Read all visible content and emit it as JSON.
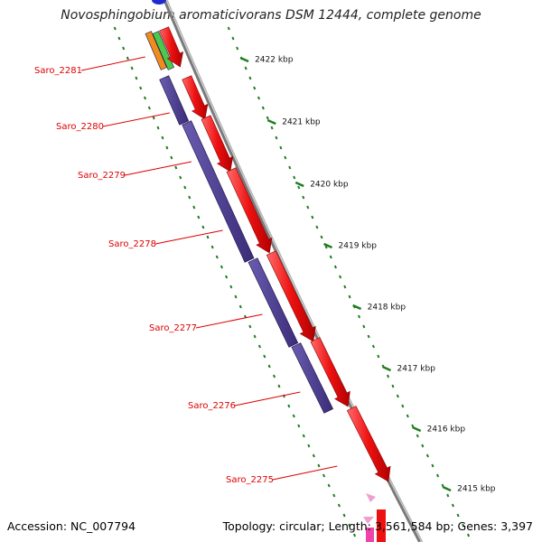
{
  "header": {
    "title": "Novosphingobium aromaticivorans DSM 12444, complete genome"
  },
  "footer": {
    "accession_label": "Accession: NC_007794",
    "summary": "Topology: circular; Length: 3,561,584 bp; Genes: 3,397"
  },
  "map": {
    "scale_labels": [
      "2422 kbp",
      "2421 kbp",
      "2420 kbp",
      "2419 kbp",
      "2418 kbp",
      "2417 kbp",
      "2416 kbp",
      "2415 kbp"
    ],
    "gene_labels": [
      "Saro_2281",
      "Saro_2280",
      "Saro_2279",
      "Saro_2278",
      "Saro_2277",
      "Saro_2276",
      "Saro_2275"
    ],
    "colors": {
      "backbone": "#7a7a7a",
      "cds_forward": "#ee1111",
      "cds_reverse": "#4a3a8c",
      "tick": "#1e7d1e",
      "label": "#dd0000",
      "accent_orange": "#f08c1e",
      "accent_green": "#4cc84c",
      "accent_blue": "#1f2bd0",
      "accent_pink": "#f0a0d0"
    }
  }
}
